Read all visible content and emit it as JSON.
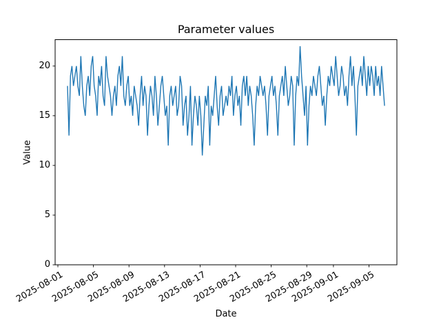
{
  "figure": {
    "background": "#ffffff",
    "text_color": "#000000"
  },
  "chart_data": {
    "type": "line",
    "title": "Parameter values",
    "xlabel": "Date",
    "ylabel": "Value",
    "line_color": "#1f77b4",
    "grid": false,
    "legend": false,
    "x_origin_date": "2025-08-01",
    "xlim_days": [
      -0.31,
      38.14
    ],
    "ylim": [
      0,
      22.65
    ],
    "yticks": [
      0,
      5,
      10,
      15,
      20
    ],
    "xticks": [
      {
        "day_offset": 0,
        "label": "2025-08-01"
      },
      {
        "day_offset": 4,
        "label": "2025-08-05"
      },
      {
        "day_offset": 8,
        "label": "2025-08-09"
      },
      {
        "day_offset": 12,
        "label": "2025-08-13"
      },
      {
        "day_offset": 16,
        "label": "2025-08-17"
      },
      {
        "day_offset": 20,
        "label": "2025-08-21"
      },
      {
        "day_offset": 24,
        "label": "2025-08-25"
      },
      {
        "day_offset": 28,
        "label": "2025-08-29"
      },
      {
        "day_offset": 31,
        "label": "2025-09-01"
      },
      {
        "day_offset": 35,
        "label": "2025-09-05"
      }
    ],
    "series": [
      {
        "name": "parameter-values",
        "start_date": "2025-08-02",
        "start_day_offset": 1.083,
        "points_per_day": 6,
        "interval_hours": 4,
        "values": [
          18,
          13,
          19,
          20,
          18,
          19,
          20,
          18,
          17,
          21,
          18,
          16,
          15,
          18,
          19,
          17,
          20,
          21,
          18,
          17,
          15,
          19,
          18,
          20,
          17,
          16,
          21,
          19,
          18,
          17,
          15,
          17,
          18,
          16,
          19,
          20,
          18,
          21,
          17,
          16,
          18,
          19,
          16,
          17,
          15,
          18,
          17,
          16,
          14,
          17,
          19,
          16,
          18,
          17,
          13,
          16,
          18,
          17,
          15,
          19,
          17,
          14,
          16,
          18,
          19,
          17,
          15,
          16,
          12,
          17,
          18,
          16,
          17,
          18,
          15,
          16,
          19,
          18,
          14,
          16,
          17,
          13,
          15,
          18,
          12,
          15,
          17,
          16,
          14,
          17,
          15,
          11,
          14,
          17,
          16,
          18,
          12,
          16,
          15,
          17,
          19,
          16,
          14,
          17,
          18,
          15,
          16,
          17,
          16,
          18,
          17,
          19,
          15,
          17,
          18,
          16,
          17,
          14,
          18,
          19,
          17,
          19,
          16,
          18,
          17,
          15,
          12,
          16,
          18,
          17,
          19,
          18,
          17,
          18,
          16,
          13,
          17,
          18,
          19,
          17,
          18,
          16,
          13,
          17,
          18,
          19,
          17,
          20,
          18,
          16,
          17,
          19,
          18,
          12,
          17,
          19,
          18,
          22,
          19,
          17,
          15,
          18,
          12,
          16,
          18,
          17,
          19,
          18,
          17,
          19,
          20,
          18,
          16,
          17,
          14,
          17,
          19,
          18,
          20,
          19,
          18,
          21,
          19,
          17,
          18,
          20,
          19,
          17,
          18,
          16,
          19,
          21,
          18,
          20,
          17,
          13,
          18,
          19,
          20,
          18,
          21,
          19,
          17,
          20,
          18,
          20,
          19,
          17,
          20,
          18,
          19,
          17,
          20,
          18,
          16
        ]
      }
    ]
  }
}
